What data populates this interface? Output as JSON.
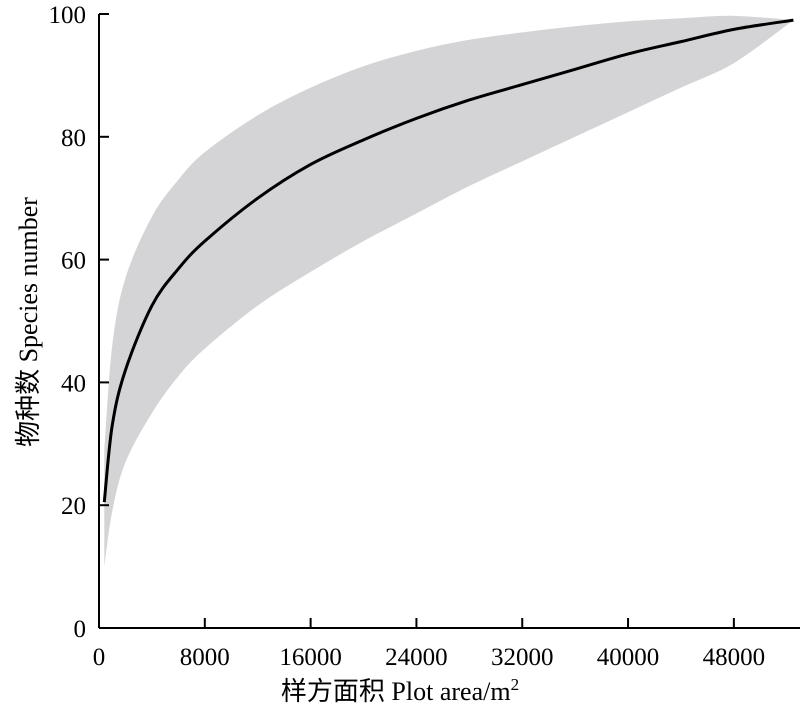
{
  "chart_data": {
    "type": "line",
    "title": "",
    "xlabel": "样方面积  Plot area/m",
    "xlabel_superscript": "2",
    "ylabel": "物种数  Species number",
    "xlim": [
      0,
      53000
    ],
    "ylim": [
      0,
      100
    ],
    "x_ticks": [
      0,
      8000,
      16000,
      24000,
      32000,
      40000,
      48000
    ],
    "y_ticks": [
      0,
      20,
      40,
      60,
      80,
      100
    ],
    "grid": false,
    "legend": "none",
    "series": [
      {
        "x": [
          400,
          1000,
          2000,
          4000,
          6000,
          8000,
          12000,
          16000,
          20000,
          24000,
          28000,
          32000,
          36000,
          40000,
          44000,
          48000,
          52500
        ],
        "values": [
          20.5,
          33,
          42,
          52.5,
          58.5,
          63,
          70,
          75.5,
          79.5,
          83,
          86,
          88.5,
          91,
          93.5,
          95.5,
          97.5,
          99
        ],
        "ci_lower": [
          10,
          19,
          27,
          35,
          41,
          45.5,
          52.5,
          58,
          63,
          67.5,
          72,
          76,
          80,
          84,
          88,
          92,
          99
        ],
        "ci_upper": [
          29,
          46,
          57,
          67,
          73,
          77.5,
          83.5,
          88,
          91.5,
          94,
          95.8,
          97,
          98,
          98.8,
          99.3,
          99.7,
          99
        ]
      }
    ],
    "colors": {
      "line": "#000000",
      "band": "#d4d4d6"
    }
  }
}
